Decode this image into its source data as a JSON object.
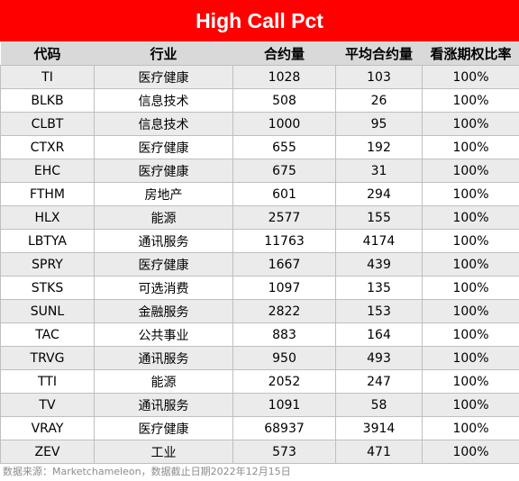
{
  "title": "High Call Pct",
  "headers": [
    "代码",
    "行业",
    "合约量",
    "平均合约量",
    "看涨期权比率"
  ],
  "rows": [
    [
      "TI",
      "医疗健康",
      "1028",
      "103",
      "100%"
    ],
    [
      "BLKB",
      "信息技术",
      "508",
      "26",
      "100%"
    ],
    [
      "CLBT",
      "信息技术",
      "1000",
      "95",
      "100%"
    ],
    [
      "CTXR",
      "医疗健康",
      "655",
      "192",
      "100%"
    ],
    [
      "EHC",
      "医疗健康",
      "675",
      "31",
      "100%"
    ],
    [
      "FTHM",
      "房地产",
      "601",
      "294",
      "100%"
    ],
    [
      "HLX",
      "能源",
      "2577",
      "155",
      "100%"
    ],
    [
      "LBTYA",
      "通讯服务",
      "11763",
      "4174",
      "100%"
    ],
    [
      "SPRY",
      "医疗健康",
      "1667",
      "439",
      "100%"
    ],
    [
      "STKS",
      "可选消费",
      "1097",
      "135",
      "100%"
    ],
    [
      "SUNL",
      "金融服务",
      "2822",
      "153",
      "100%"
    ],
    [
      "TAC",
      "公共事业",
      "883",
      "164",
      "100%"
    ],
    [
      "TRVG",
      "通讯服务",
      "950",
      "493",
      "100%"
    ],
    [
      "TTI",
      "能源",
      "2052",
      "247",
      "100%"
    ],
    [
      "TV",
      "通讯服务",
      "1091",
      "58",
      "100%"
    ],
    [
      "VRAY",
      "医疗健康",
      "68937",
      "3914",
      "100%"
    ],
    [
      "ZEV",
      "工业",
      "573",
      "471",
      "100%"
    ]
  ],
  "footer": "数据来源：Marketchameleon，数据截止日期2022年12月15日",
  "colors": {
    "title_bg": "#ff0000",
    "header_bg": "#d9d9d9",
    "odd_row_bg": "#ebebeb"
  }
}
